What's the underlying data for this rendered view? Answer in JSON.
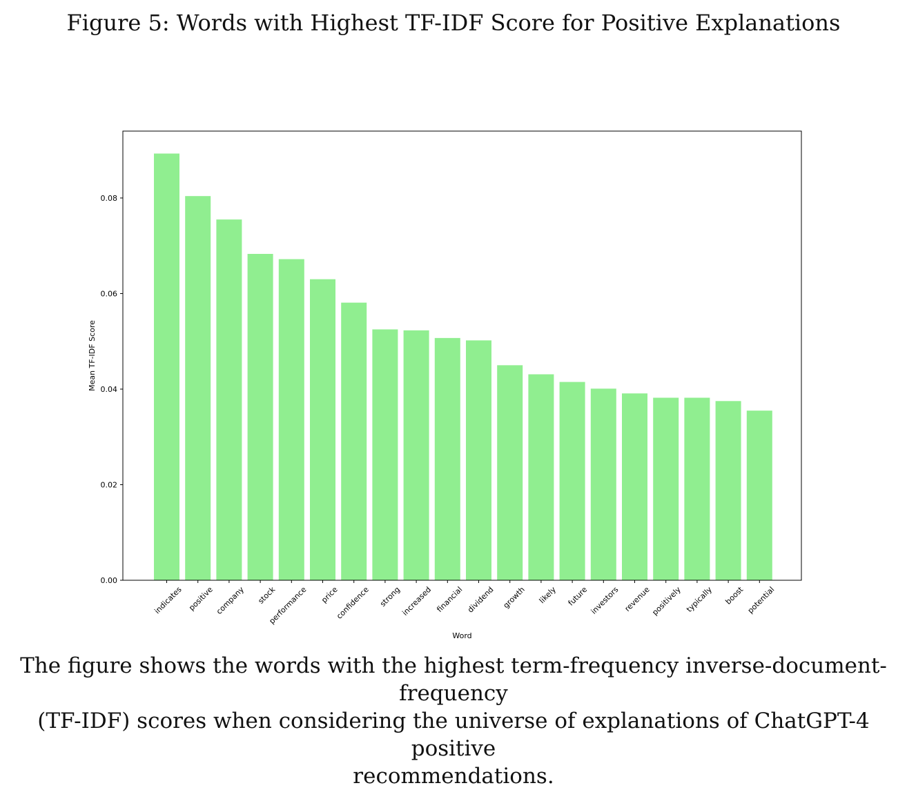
{
  "figure_title": "Figure 5: Words with Highest TF-IDF Score for Positive Explanations",
  "caption_lines": [
    "The figure shows the words with the highest term-frequency inverse-document-frequency",
    "(TF-IDF) scores when considering the universe of explanations of ChatGPT-4 positive",
    "recommendations."
  ],
  "chart_data": {
    "type": "bar",
    "title": "",
    "xlabel": "Word",
    "ylabel": "Mean TF-IDF Score",
    "categories": [
      "indicates",
      "positive",
      "company",
      "stock",
      "performance",
      "price",
      "confidence",
      "strong",
      "increased",
      "financial",
      "dividend",
      "growth",
      "likely",
      "future",
      "investors",
      "revenue",
      "positively",
      "typically",
      "boost",
      "potential"
    ],
    "values": [
      0.0893,
      0.0804,
      0.0755,
      0.0683,
      0.0672,
      0.063,
      0.0581,
      0.0525,
      0.0523,
      0.0507,
      0.0502,
      0.045,
      0.0431,
      0.0415,
      0.0401,
      0.0391,
      0.0382,
      0.0382,
      0.0375,
      0.0355
    ],
    "ylim": [
      0,
      0.094
    ],
    "yticks": [
      "0.00",
      "0.02",
      "0.04",
      "0.06",
      "0.08"
    ],
    "bar_color": "#90ee90",
    "grid": false
  }
}
